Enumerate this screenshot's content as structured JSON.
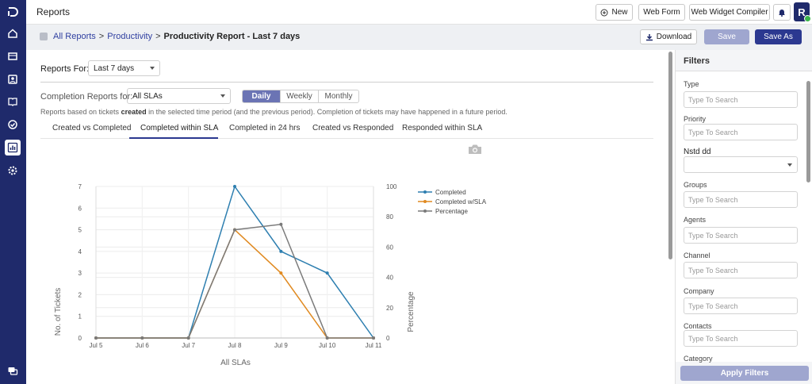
{
  "header": {
    "title": "Reports",
    "new_label": "New",
    "webform_label": "Web Form",
    "widget_label": "Web Widget Compiler",
    "avatar_letter": "R"
  },
  "breadcrumb": {
    "all_reports": "All Reports",
    "sep1": ">",
    "productivity": "Productivity",
    "sep2": ">",
    "current": "Productivity Report - Last 7 days"
  },
  "actions": {
    "download_label": "Download",
    "save_label": "Save",
    "save_as_label": "Save As"
  },
  "reports_for": {
    "label": "Reports For:",
    "value": "Last 7 days"
  },
  "completion": {
    "label": "Completion Reports for:",
    "value": "All SLAs",
    "periods": [
      "Daily",
      "Weekly",
      "Monthly"
    ],
    "active_period": "Daily"
  },
  "note": {
    "before": "Reports based on tickets ",
    "bold": "created",
    "after": " in the selected time period (and the previous period). Completion of tickets may have happened in a future period."
  },
  "tabs": [
    "Created vs Completed",
    "Completed within SLA",
    "Completed in 24 hrs",
    "Created vs Responded",
    "Responded within SLA"
  ],
  "active_tab": "Completed within SLA",
  "filters": {
    "title": "Filters",
    "fields": [
      {
        "label": "Type",
        "placeholder": "Type To Search",
        "kind": "input"
      },
      {
        "label": "Priority",
        "placeholder": "Type To Search",
        "kind": "input"
      },
      {
        "label": "Nstd dd",
        "placeholder": "",
        "kind": "select"
      },
      {
        "label": "Groups",
        "placeholder": "Type To Search",
        "kind": "input"
      },
      {
        "label": "Agents",
        "placeholder": "Type To Search",
        "kind": "input"
      },
      {
        "label": "Channel",
        "placeholder": "Type To Search",
        "kind": "input"
      },
      {
        "label": "Company",
        "placeholder": "Type To Search",
        "kind": "input"
      },
      {
        "label": "Contacts",
        "placeholder": "Type To Search",
        "kind": "input"
      },
      {
        "label": "Category",
        "placeholder": "",
        "kind": "label"
      }
    ],
    "apply_label": "Apply Filters"
  },
  "chart_data": {
    "type": "line",
    "categories": [
      "Jul 5",
      "Jul 6",
      "Jul 7",
      "Jul 8",
      "Jul 9",
      "Jul 10",
      "Jul 11"
    ],
    "series": [
      {
        "name": "Completed",
        "values": [
          0,
          0,
          0,
          7,
          4,
          3,
          0
        ],
        "axis": "left",
        "color": "#2e7fb0"
      },
      {
        "name": "Completed w/SLA",
        "values": [
          0,
          0,
          0,
          5,
          3,
          0,
          0
        ],
        "axis": "left",
        "color": "#e08a21"
      },
      {
        "name": "Percentage",
        "values": [
          0,
          0,
          0,
          71.4,
          75,
          0,
          0
        ],
        "axis": "right",
        "color": "#7a7a7a"
      }
    ],
    "xlabel": "All SLAs",
    "ylabel": "No. of Tickets",
    "y2label": "Percentage",
    "ylim": [
      0,
      7
    ],
    "y2lim": [
      0,
      100
    ],
    "yticks": [
      0,
      1,
      2,
      3,
      4,
      5,
      6,
      7
    ],
    "y2ticks": [
      0,
      20,
      40,
      60,
      80,
      100
    ],
    "legend": "top-right",
    "grid": true
  }
}
